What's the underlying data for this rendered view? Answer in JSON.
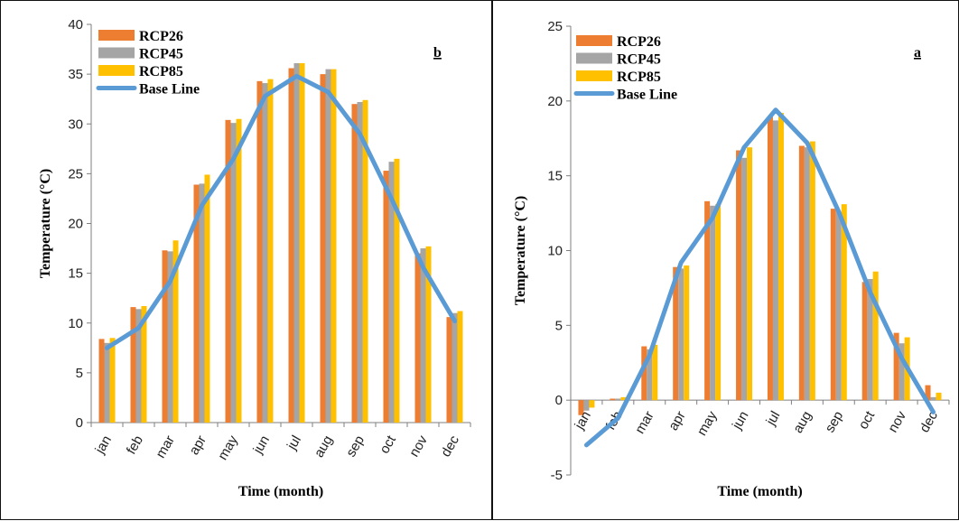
{
  "colors": {
    "rcp26": "#ED7D31",
    "rcp45": "#A5A5A5",
    "rcp85": "#FFC000",
    "baseline": "#5B9BD5"
  },
  "chart_data": [
    {
      "panel": "b",
      "type": "bar",
      "categories": [
        "jan",
        "feb",
        "mar",
        "apr",
        "may",
        "jun",
        "jul",
        "aug",
        "sep",
        "oct",
        "nov",
        "dec"
      ],
      "series": [
        {
          "name": "RCP26",
          "type": "bar",
          "values": [
            8.4,
            11.6,
            17.3,
            23.9,
            30.4,
            34.3,
            35.6,
            35.0,
            32.0,
            25.3,
            17.0,
            10.6
          ]
        },
        {
          "name": "RCP45",
          "type": "bar",
          "values": [
            8.0,
            11.4,
            17.2,
            24.0,
            30.1,
            34.1,
            36.1,
            35.5,
            32.2,
            26.2,
            17.5,
            11.0
          ]
        },
        {
          "name": "RCP85",
          "type": "bar",
          "values": [
            8.5,
            11.7,
            18.3,
            24.9,
            30.5,
            34.5,
            36.1,
            35.5,
            32.4,
            26.5,
            17.7,
            11.2
          ]
        },
        {
          "name": "Base Line",
          "type": "line",
          "values": [
            7.5,
            9.5,
            14.2,
            21.8,
            26.5,
            32.8,
            34.8,
            33.2,
            29.0,
            22.5,
            15.6,
            10.2
          ]
        }
      ],
      "xlabel": "Time (month)",
      "ylabel": "Temperature (°C)",
      "ylim": [
        0,
        40
      ],
      "yticks": [
        "0",
        "5",
        "10",
        "15",
        "20",
        "25",
        "30",
        "35",
        "40"
      ],
      "legend_placement": "top-left",
      "grid": false
    },
    {
      "panel": "a",
      "type": "bar",
      "categories": [
        "jan",
        "feb",
        "mar",
        "apr",
        "may",
        "jun",
        "jul",
        "aug",
        "sep",
        "oct",
        "nov",
        "dec"
      ],
      "series": [
        {
          "name": "RCP26",
          "type": "bar",
          "values": [
            -1.0,
            0.1,
            3.6,
            8.9,
            13.3,
            16.7,
            19.0,
            17.0,
            12.8,
            7.9,
            4.5,
            1.0
          ]
        },
        {
          "name": "RCP45",
          "type": "bar",
          "values": [
            -0.7,
            0.1,
            3.4,
            8.8,
            13.0,
            16.2,
            18.7,
            16.9,
            12.6,
            8.1,
            3.8,
            0.2
          ]
        },
        {
          "name": "RCP85",
          "type": "bar",
          "values": [
            -0.5,
            0.2,
            3.7,
            9.0,
            13.1,
            16.9,
            19.2,
            17.3,
            13.1,
            8.6,
            4.2,
            0.5
          ]
        },
        {
          "name": "Base Line",
          "type": "line",
          "values": [
            -3.0,
            -1.2,
            3.0,
            9.2,
            12.2,
            16.9,
            19.4,
            17.2,
            12.6,
            7.2,
            2.8,
            -0.8
          ]
        }
      ],
      "xlabel": "Time (month)",
      "ylabel": "Temperature (°C)",
      "ylim": [
        -5,
        25
      ],
      "yticks": [
        "-5",
        "0",
        "5",
        "10",
        "15",
        "20",
        "25"
      ],
      "legend_placement": "top-left",
      "grid": false
    }
  ]
}
